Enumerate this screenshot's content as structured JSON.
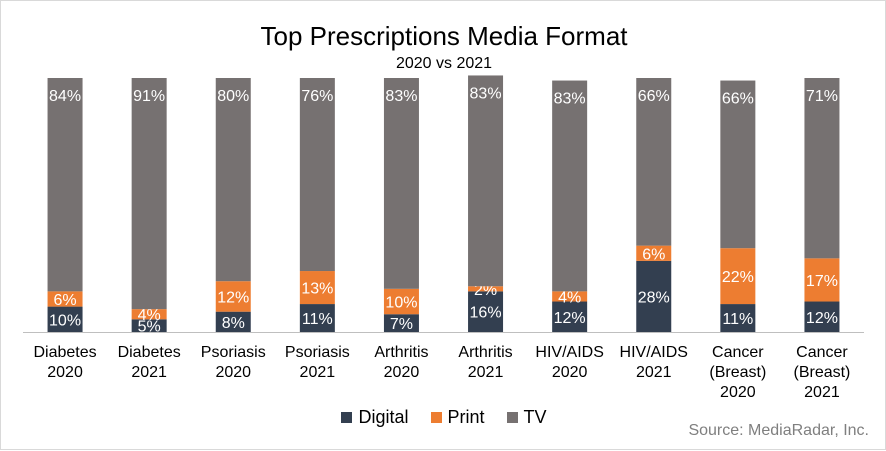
{
  "title": "Top Prescriptions Media Format",
  "subtitle": "2020 vs 2021",
  "source": "Source: MediaRadar, Inc.",
  "colors": {
    "Digital": "#333f50",
    "Print": "#ed7d31",
    "TV": "#767171",
    "axis": "#bfbfbf",
    "label": "#ffffff"
  },
  "chart_data": {
    "type": "bar",
    "stacked": true,
    "categories": [
      [
        "Diabetes",
        "2020"
      ],
      [
        "Diabetes",
        "2021"
      ],
      [
        "Psoriasis",
        "2020"
      ],
      [
        "Psoriasis",
        "2021"
      ],
      [
        "Arthritis",
        "2020"
      ],
      [
        "Arthritis",
        "2021"
      ],
      [
        "HIV/AIDS",
        "2020"
      ],
      [
        "HIV/AIDS",
        "2021"
      ],
      [
        "Cancer",
        "(Breast)",
        "2020"
      ],
      [
        "Cancer",
        "(Breast)",
        "2021"
      ]
    ],
    "series": [
      {
        "name": "Digital",
        "values": [
          10,
          5,
          8,
          11,
          7,
          16,
          12,
          28,
          11,
          12
        ],
        "labels": [
          "10%",
          "5%",
          "8%",
          "11%",
          "7%",
          "16%",
          "12%",
          "28%",
          "11%",
          "12%"
        ]
      },
      {
        "name": "Print",
        "values": [
          6,
          4,
          12,
          13,
          10,
          2,
          4,
          6,
          22,
          17
        ],
        "labels": [
          "6%",
          "4%",
          "12%",
          "13%",
          "10%",
          "2%",
          "4%",
          "6%",
          "22%",
          "17%"
        ]
      },
      {
        "name": "TV",
        "values": [
          84,
          91,
          80,
          76,
          83,
          83,
          83,
          66,
          66,
          71
        ],
        "labels": [
          "84%",
          "91%",
          "80%",
          "76%",
          "83%",
          "83%",
          "83%",
          "66%",
          "66%",
          "71%"
        ]
      }
    ],
    "ylim": [
      0,
      100
    ],
    "legend_position": "bottom"
  }
}
